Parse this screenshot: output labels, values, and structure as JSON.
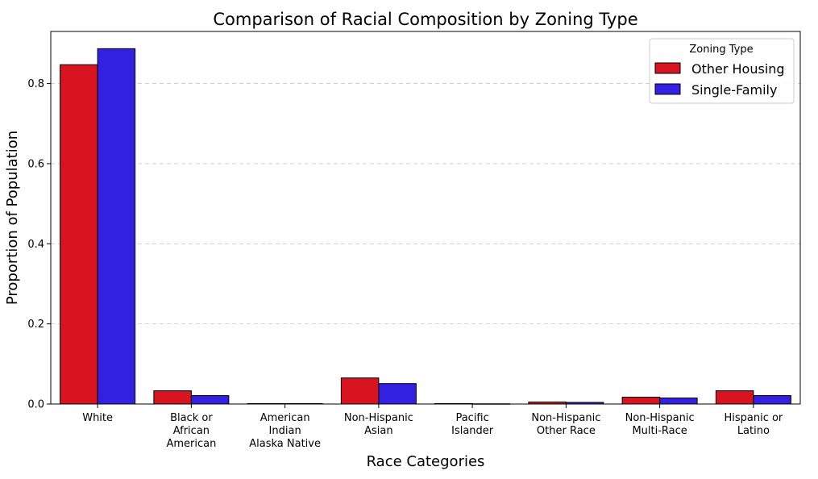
{
  "chart_data": {
    "type": "bar",
    "title": "Comparison of Racial Composition by Zoning Type",
    "xlabel": "Race Categories",
    "ylabel": "Proportion of Population",
    "ylim": [
      0,
      0.93
    ],
    "yticks": [
      "0.0",
      "0.2",
      "0.4",
      "0.6",
      "0.8"
    ],
    "ytick_values": [
      0,
      0.2,
      0.4,
      0.6,
      0.8
    ],
    "grid": "horizontal dashed",
    "categories": [
      [
        "White"
      ],
      [
        "Black or",
        "African",
        "American"
      ],
      [
        "American",
        "Indian",
        "Alaska Native"
      ],
      [
        "Non-Hispanic",
        "Asian"
      ],
      [
        "Pacific",
        "Islander"
      ],
      [
        "Non-Hispanic",
        "Other Race"
      ],
      [
        "Non-Hispanic",
        "Multi-Race"
      ],
      [
        "Hispanic or",
        "Latino"
      ]
    ],
    "legend": {
      "title": "Zoning Type",
      "placement": "top-right"
    },
    "series": [
      {
        "name": "Other Housing",
        "color": "#d7141f",
        "values": [
          0.847,
          0.033,
          0.001,
          0.065,
          0.001,
          0.005,
          0.017,
          0.033
        ]
      },
      {
        "name": "Single-Family",
        "color": "#3321e1",
        "values": [
          0.887,
          0.021,
          0.001,
          0.051,
          0.0005,
          0.004,
          0.015,
          0.021
        ]
      }
    ]
  }
}
